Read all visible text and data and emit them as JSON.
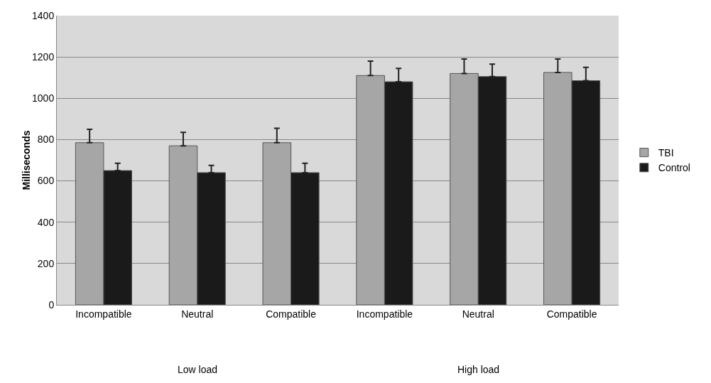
{
  "chart_data": {
    "type": "bar",
    "ylabel": "Milliseconds",
    "categories": [
      "Incompatible",
      "Neutral",
      "Compatible",
      "Incompatible",
      "Neutral",
      "Compatible"
    ],
    "series": [
      {
        "name": "TBI",
        "color": "#a6a6a6",
        "values": [
          785,
          770,
          785,
          1110,
          1120,
          1125
        ],
        "errors": [
          [
            785,
            850
          ],
          [
            770,
            835
          ],
          [
            785,
            855
          ],
          [
            1110,
            1180
          ],
          [
            1120,
            1190
          ],
          [
            1125,
            1190
          ]
        ]
      },
      {
        "name": "Control",
        "color": "#1a1a1a",
        "values": [
          650,
          640,
          640,
          1080,
          1105,
          1085
        ],
        "errors": [
          [
            650,
            685
          ],
          [
            640,
            675
          ],
          [
            640,
            685
          ],
          [
            1080,
            1145
          ],
          [
            1105,
            1165
          ],
          [
            1085,
            1150
          ]
        ]
      }
    ],
    "annotations": [
      "Low load",
      "High load"
    ],
    "ylim": [
      0,
      1400
    ],
    "yticks": [
      0,
      200,
      400,
      600,
      800,
      1000,
      1200,
      1400
    ],
    "grid": "y",
    "legend": "right"
  }
}
